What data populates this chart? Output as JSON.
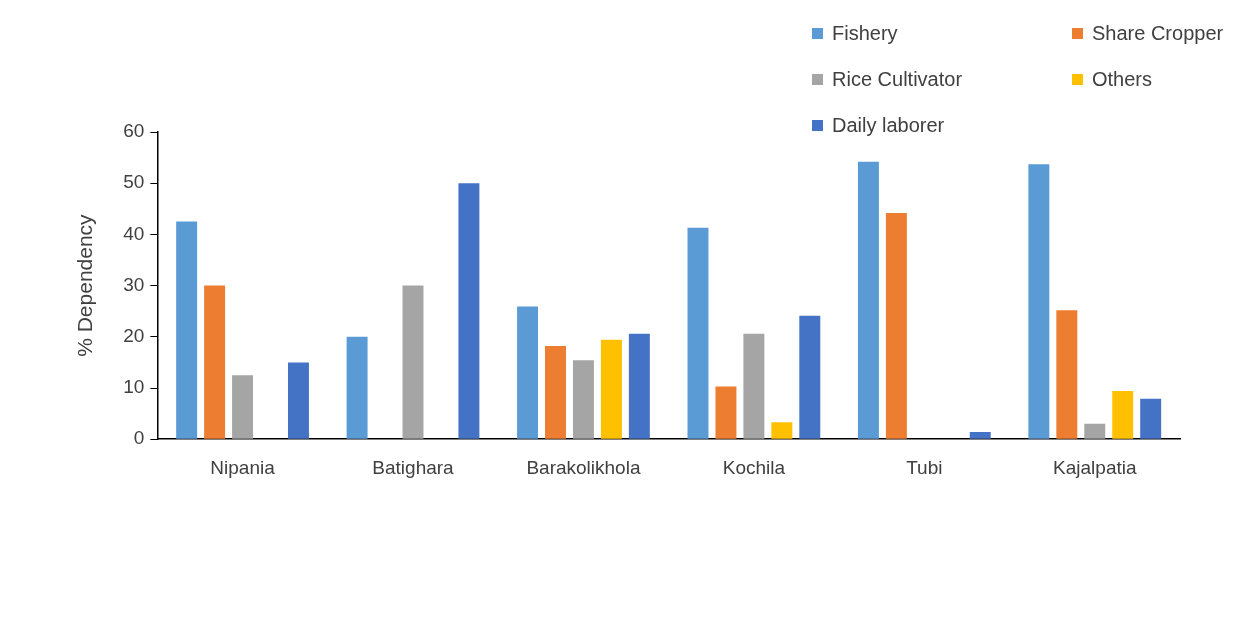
{
  "chart_data": {
    "type": "bar",
    "ylabel": "% Dependency",
    "categories": [
      "Nipania",
      "Batighara",
      "Barakolikhola",
      "Kochila",
      "Tubi",
      "Kajalpatia"
    ],
    "series": [
      {
        "name": "Fishery",
        "color": "#5b9bd5",
        "values": [
          42.5,
          20,
          25.9,
          41.3,
          54.2,
          53.7
        ]
      },
      {
        "name": "Share Cropper",
        "color": "#ed7d31",
        "values": [
          30,
          0,
          18.2,
          10.3,
          44.2,
          25.2
        ]
      },
      {
        "name": "Rice Cultivator",
        "color": "#a5a5a5",
        "values": [
          12.5,
          30,
          15.4,
          20.6,
          0,
          3
        ]
      },
      {
        "name": "Others",
        "color": "#ffc000",
        "values": [
          0,
          0,
          19.4,
          3.3,
          0,
          9.4
        ]
      },
      {
        "name": "Daily laborer",
        "color": "#4472c4",
        "values": [
          15,
          50,
          20.6,
          24.1,
          1.4,
          7.9
        ]
      }
    ],
    "ylim": [
      0,
      60
    ],
    "yticks": [
      0,
      10,
      20,
      30,
      40,
      50,
      60
    ],
    "grid": false,
    "legend": "top right"
  }
}
